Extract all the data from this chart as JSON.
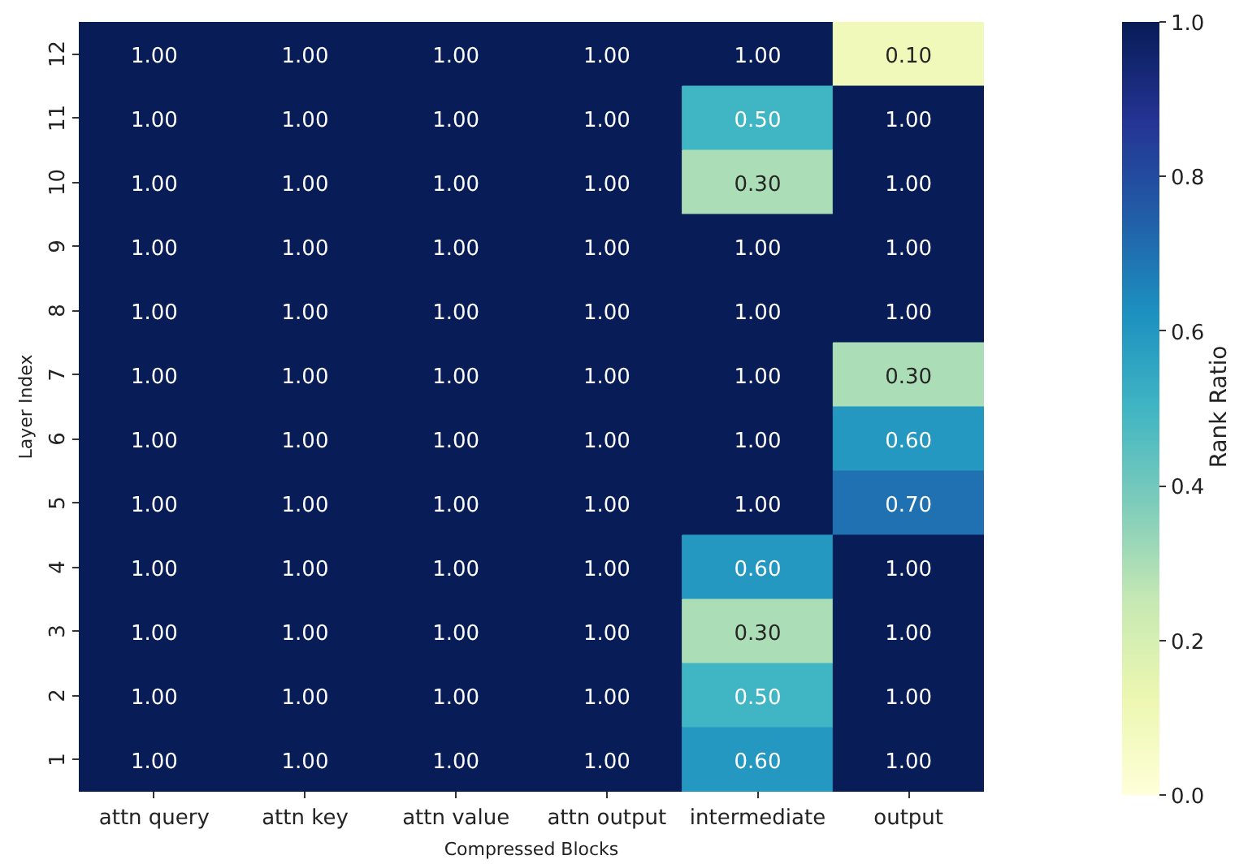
{
  "chart_data": {
    "type": "heatmap",
    "xlabel": "Compressed Blocks",
    "ylabel": "Layer Index",
    "clabel": "Rank Ratio",
    "categories": [
      "attn query",
      "attn key",
      "attn value",
      "attn output",
      "intermediate",
      "output"
    ],
    "y_categories": [
      "12",
      "11",
      "10",
      "9",
      "8",
      "7",
      "6",
      "5",
      "4",
      "3",
      "2",
      "1"
    ],
    "cells": [
      [
        1,
        1,
        1,
        1,
        1,
        0.1
      ],
      [
        1,
        1,
        1,
        1,
        0.5,
        1
      ],
      [
        1,
        1,
        1,
        1,
        0.3,
        1
      ],
      [
        1,
        1,
        1,
        1,
        1,
        1
      ],
      [
        1,
        1,
        1,
        1,
        1,
        1
      ],
      [
        1,
        1,
        1,
        1,
        1,
        0.3
      ],
      [
        1,
        1,
        1,
        1,
        1,
        0.6
      ],
      [
        1,
        1,
        1,
        1,
        1,
        0.7
      ],
      [
        1,
        1,
        1,
        1,
        0.6,
        1
      ],
      [
        1,
        1,
        1,
        1,
        0.3,
        1
      ],
      [
        1,
        1,
        1,
        1,
        0.5,
        1
      ],
      [
        1,
        1,
        1,
        1,
        0.6,
        1
      ]
    ],
    "cell_labels": [
      [
        "1.00",
        "1.00",
        "1.00",
        "1.00",
        "1.00",
        "0.10"
      ],
      [
        "1.00",
        "1.00",
        "1.00",
        "1.00",
        "0.50",
        "1.00"
      ],
      [
        "1.00",
        "1.00",
        "1.00",
        "1.00",
        "0.30",
        "1.00"
      ],
      [
        "1.00",
        "1.00",
        "1.00",
        "1.00",
        "1.00",
        "1.00"
      ],
      [
        "1.00",
        "1.00",
        "1.00",
        "1.00",
        "1.00",
        "1.00"
      ],
      [
        "1.00",
        "1.00",
        "1.00",
        "1.00",
        "1.00",
        "0.30"
      ],
      [
        "1.00",
        "1.00",
        "1.00",
        "1.00",
        "1.00",
        "0.60"
      ],
      [
        "1.00",
        "1.00",
        "1.00",
        "1.00",
        "1.00",
        "0.70"
      ],
      [
        "1.00",
        "1.00",
        "1.00",
        "1.00",
        "0.60",
        "1.00"
      ],
      [
        "1.00",
        "1.00",
        "1.00",
        "1.00",
        "0.30",
        "1.00"
      ],
      [
        "1.00",
        "1.00",
        "1.00",
        "1.00",
        "0.50",
        "1.00"
      ],
      [
        "1.00",
        "1.00",
        "1.00",
        "1.00",
        "0.60",
        "1.00"
      ]
    ],
    "clim": [
      0,
      1
    ],
    "cticks": [
      {
        "value": 0,
        "label": "0.0"
      },
      0.2,
      0.4,
      0.6,
      0.8,
      {
        "value": 1,
        "label": "1.0"
      }
    ]
  }
}
